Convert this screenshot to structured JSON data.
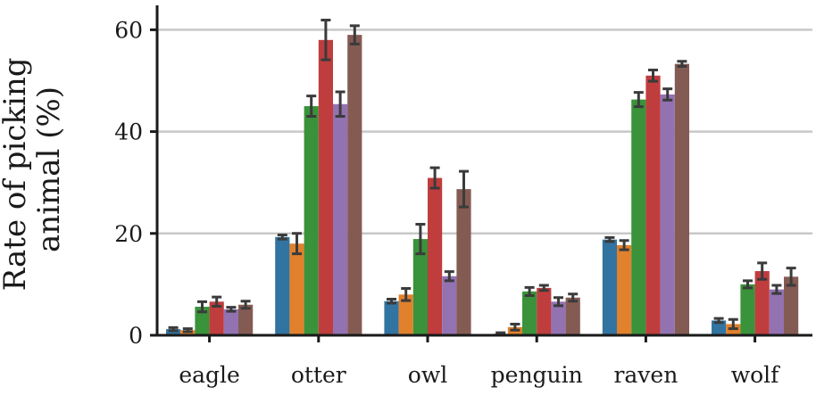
{
  "chart_data": {
    "type": "bar",
    "title": "",
    "xlabel": "",
    "ylabel": [
      "Rate of picking",
      "animal (%)"
    ],
    "ylim": [
      0,
      65
    ],
    "yticks": [
      0,
      20,
      40,
      60
    ],
    "grid": "horizontal",
    "categories": [
      "eagle",
      "otter",
      "owl",
      "penguin",
      "raven",
      "wolf"
    ],
    "series": [
      {
        "color": "#3274a1",
        "values": [
          1.2,
          19.3,
          6.7,
          0.3,
          18.8,
          2.9
        ],
        "errors": [
          0.3,
          0.4,
          0.4,
          0.2,
          0.4,
          0.4
        ]
      },
      {
        "color": "#e1812c",
        "values": [
          1.0,
          18.0,
          8.0,
          1.6,
          17.7,
          2.2
        ],
        "errors": [
          0.3,
          2.0,
          1.2,
          0.6,
          0.9,
          0.9
        ]
      },
      {
        "color": "#3a923a",
        "values": [
          5.6,
          45.0,
          18.9,
          8.6,
          46.3,
          10.0
        ],
        "errors": [
          1.0,
          2.0,
          2.9,
          0.8,
          1.4,
          0.7
        ]
      },
      {
        "color": "#c03d3e",
        "values": [
          6.6,
          58.0,
          30.9,
          9.3,
          51.0,
          12.6
        ],
        "errors": [
          0.9,
          3.9,
          2.0,
          0.5,
          1.1,
          1.6
        ]
      },
      {
        "color": "#9372b2",
        "values": [
          5.1,
          45.4,
          11.6,
          6.6,
          47.3,
          9.0
        ],
        "errors": [
          0.4,
          2.4,
          0.9,
          0.8,
          1.1,
          0.8
        ]
      },
      {
        "color": "#845b53",
        "values": [
          6.0,
          59.0,
          28.7,
          7.4,
          53.3,
          11.5
        ],
        "errors": [
          0.7,
          1.8,
          3.5,
          0.7,
          0.5,
          1.7
        ]
      }
    ]
  }
}
